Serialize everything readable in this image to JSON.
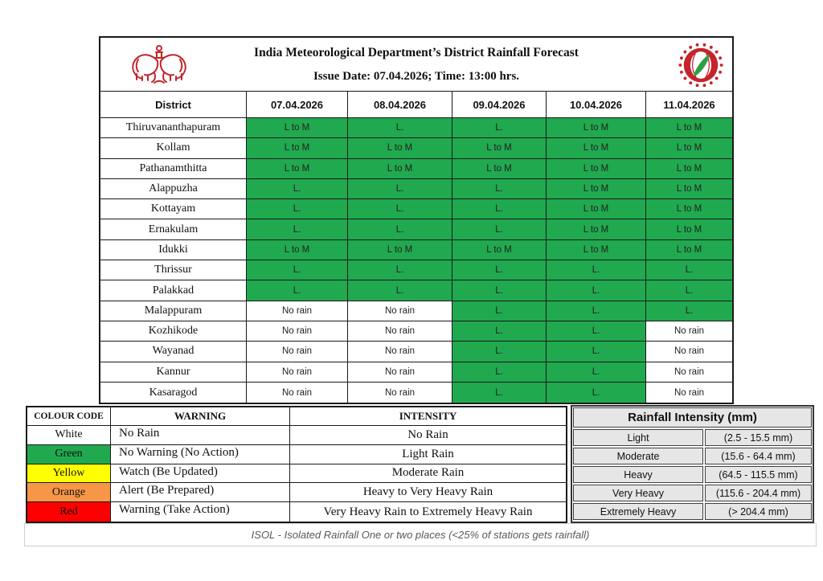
{
  "header": {
    "title": "India Meteorological Department’s District Rainfall Forecast",
    "issue_line": "Issue Date: 07.04.2026; Time: 13:00 hrs.",
    "left_logo": "india-meteorological-department-emblem",
    "right_logo": "imd-circular-seal"
  },
  "forecast_table": {
    "columns": [
      "District",
      "07.04.2026",
      "08.04.2026",
      "09.04.2026",
      "10.04.2026",
      "11.04.2026"
    ],
    "no_rain_text": "No rain",
    "rows": [
      {
        "district": "Thiruvananthapuram",
        "values": [
          "L to M",
          "L.",
          "L.",
          "L to M",
          "L to M"
        ]
      },
      {
        "district": "Kollam",
        "values": [
          "L to M",
          "L to M",
          "L to M",
          "L to M",
          "L to M"
        ]
      },
      {
        "district": "Pathanamthitta",
        "values": [
          "L to M",
          "L to M",
          "L to M",
          "L to M",
          "L to M"
        ]
      },
      {
        "district": "Alappuzha",
        "values": [
          "L.",
          "L.",
          "L.",
          "L to M",
          "L to M"
        ]
      },
      {
        "district": "Kottayam",
        "values": [
          "L.",
          "L.",
          "L.",
          "L to M",
          "L to M"
        ]
      },
      {
        "district": "Ernakulam",
        "values": [
          "L.",
          "L.",
          "L.",
          "L to M",
          "L to M"
        ]
      },
      {
        "district": "Idukki",
        "values": [
          "L to M",
          "L to M",
          "L to M",
          "L to M",
          "L to M"
        ]
      },
      {
        "district": "Thrissur",
        "values": [
          "L.",
          "L.",
          "L.",
          "L.",
          "L."
        ]
      },
      {
        "district": "Palakkad",
        "values": [
          "L.",
          "L.",
          "L.",
          "L.",
          "L."
        ]
      },
      {
        "district": "Malappuram",
        "values": [
          "No rain",
          "No rain",
          "L.",
          "L.",
          "L."
        ]
      },
      {
        "district": "Kozhikode",
        "values": [
          "No rain",
          "No rain",
          "L.",
          "L.",
          "No rain"
        ]
      },
      {
        "district": "Wayanad",
        "values": [
          "No rain",
          "No rain",
          "L.",
          "L.",
          "No rain"
        ]
      },
      {
        "district": "Kannur",
        "values": [
          "No rain",
          "No rain",
          "L.",
          "L.",
          "No rain"
        ]
      },
      {
        "district": "Kasaragod",
        "values": [
          "No rain",
          "No rain",
          "L.",
          "L.",
          "No rain"
        ]
      }
    ]
  },
  "colour_code_table": {
    "headers": [
      "COLOUR CODE",
      "WARNING",
      "INTENSITY"
    ],
    "rows": [
      {
        "colour": "White",
        "hex": "#ffffff",
        "warning": "No Rain",
        "intensity": "No Rain"
      },
      {
        "colour": "Green",
        "hex": "#21a94f",
        "warning": "No Warning (No Action)",
        "intensity": "Light Rain"
      },
      {
        "colour": "Yellow",
        "hex": "#ffff00",
        "warning": "Watch (Be Updated)",
        "intensity": "Moderate Rain"
      },
      {
        "colour": "Orange",
        "hex": "#f79646",
        "warning": "Alert (Be Prepared)",
        "intensity": "Heavy to Very Heavy Rain"
      },
      {
        "colour": "Red",
        "hex": "#ff0000",
        "warning": "Warning (Take Action)",
        "intensity": "Very Heavy Rain to Extremely Heavy Rain"
      }
    ]
  },
  "rainfall_intensity_table": {
    "title": "Rainfall Intensity (mm)",
    "rows": [
      {
        "label": "Light",
        "range": "(2.5 - 15.5 mm)"
      },
      {
        "label": "Moderate",
        "range": "(15.6 - 64.4 mm)"
      },
      {
        "label": "Heavy",
        "range": "(64.5 - 115.5 mm)"
      },
      {
        "label": "Very Heavy",
        "range": "(115.6 - 204.4 mm)"
      },
      {
        "label": "Extremely Heavy",
        "range": "(> 204.4 mm)"
      }
    ]
  },
  "footer": {
    "note": "ISOL - Isolated Rainfall One or two places (<25% of stations gets rainfall)"
  },
  "colors": {
    "rain_green": "#21a94f",
    "warning_yellow": "#ffff00",
    "alert_orange": "#f79646",
    "warning_red": "#ff0000",
    "logo_red": "#c4242b",
    "leaf_green": "#2f9e44",
    "table_gray": "#e7e6e6",
    "border_black": "#1a1a1a"
  }
}
